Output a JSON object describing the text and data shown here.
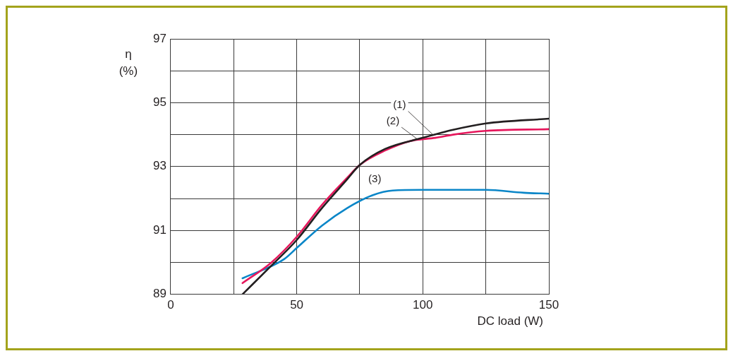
{
  "chart_data": {
    "type": "line",
    "xlabel": "DC load (W)",
    "ylabel": "η\n(%)",
    "xlim": [
      0,
      150
    ],
    "xticks": [
      0,
      {
        "value": 25,
        "label": null
      },
      50,
      {
        "value": 75,
        "label": null
      },
      100,
      {
        "value": 125,
        "label": null
      },
      150
    ],
    "ylim": [
      89,
      97
    ],
    "yticks": [
      89,
      {
        "value": 90,
        "label": null
      },
      91,
      {
        "value": 92,
        "label": null
      },
      93,
      {
        "value": 94,
        "label": null
      },
      95,
      {
        "value": 96,
        "label": null
      },
      97
    ],
    "grid": true,
    "legend": false,
    "marker": "none",
    "line_style": "solid",
    "series": [
      {
        "color": "#231f20",
        "x": [
          28.5,
          40,
          50,
          60,
          70,
          75,
          85,
          100,
          112,
          125,
          150
        ],
        "values": [
          89.0,
          89.9,
          90.7,
          91.7,
          92.6,
          93.05,
          93.55,
          93.9,
          94.15,
          94.35,
          94.5
        ]
      },
      {
        "color": "#e6175c",
        "x": [
          28.5,
          40,
          50,
          60,
          70,
          75,
          85,
          95,
          105,
          112,
          125,
          150
        ],
        "values": [
          89.35,
          90.0,
          90.8,
          91.8,
          92.65,
          93.05,
          93.5,
          93.8,
          93.9,
          94.0,
          94.12,
          94.17
        ]
      },
      {
        "color": "#0a86c8",
        "x": [
          28.5,
          45,
          50,
          60,
          70,
          80,
          88,
          100,
          125,
          140,
          150
        ],
        "values": [
          89.5,
          90.1,
          90.45,
          91.15,
          91.7,
          92.1,
          92.25,
          92.27,
          92.27,
          92.18,
          92.15
        ]
      }
    ],
    "annotations": [
      {
        "text": "(1)",
        "x": 104,
        "y": 94.0
      },
      {
        "text": "(2)",
        "x": 98,
        "y": 93.85
      },
      {
        "text": "(3)",
        "x": 86,
        "y": 92.25
      }
    ]
  }
}
